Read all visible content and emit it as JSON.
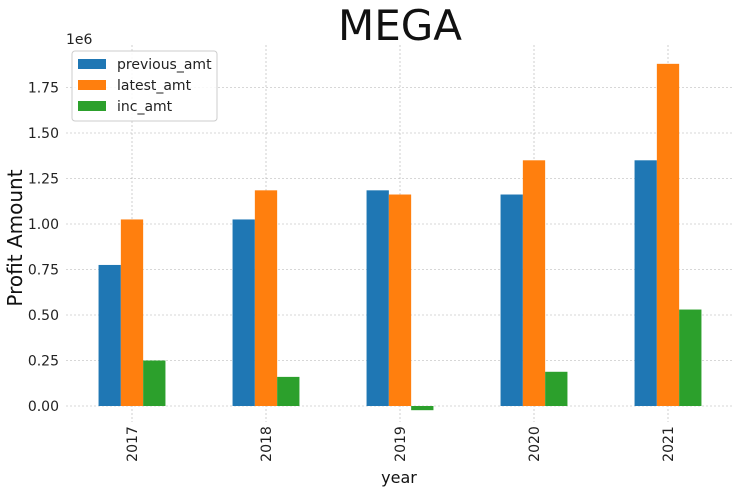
{
  "chart_data": {
    "type": "bar",
    "title": "MEGA",
    "xlabel": "year",
    "ylabel": "Profit Amount",
    "y_offset_label": "1e6",
    "categories": [
      "2017",
      "2018",
      "2019",
      "2020",
      "2021"
    ],
    "series": [
      {
        "name": "previous_amt",
        "color": "#1f77b4",
        "values": [
          775000,
          1025000,
          1185000,
          1162000,
          1350000
        ]
      },
      {
        "name": "latest_amt",
        "color": "#ff7f0e",
        "values": [
          1025000,
          1185000,
          1162000,
          1350000,
          1880000
        ]
      },
      {
        "name": "inc_amt",
        "color": "#2ca02c",
        "values": [
          250000,
          160000,
          -23000,
          188000,
          530000
        ]
      }
    ],
    "y_ticks": [
      0,
      250000,
      500000,
      750000,
      1000000,
      1250000,
      1500000,
      1750000
    ],
    "y_tick_labels": [
      "0.00",
      "0.25",
      "0.50",
      "0.75",
      "1.00",
      "1.25",
      "1.50",
      "1.75"
    ],
    "ylim": [
      -95000,
      1975000
    ],
    "grid": true,
    "legend_position": "top-left",
    "x_tick_rotation": "vertical"
  }
}
